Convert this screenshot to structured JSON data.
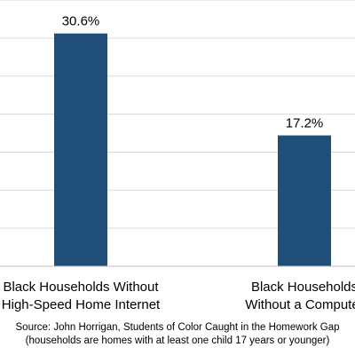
{
  "chart_data": {
    "type": "bar",
    "categories": [
      [
        "Black Households Without",
        "High-Speed Home Internet"
      ],
      [
        "Black Households",
        "Without a Computer"
      ]
    ],
    "values": [
      30.6,
      17.2
    ],
    "value_labels": [
      "30.6%",
      "17.2%"
    ],
    "ylim": [
      0,
      35
    ],
    "grid": true,
    "bar_color": "#1f4e79"
  },
  "source": {
    "line1": "Source: John Horrigan, Students of Color Caught in the Homework Gap",
    "line2": "(households are homes with at least one child 17 years or younger)"
  }
}
